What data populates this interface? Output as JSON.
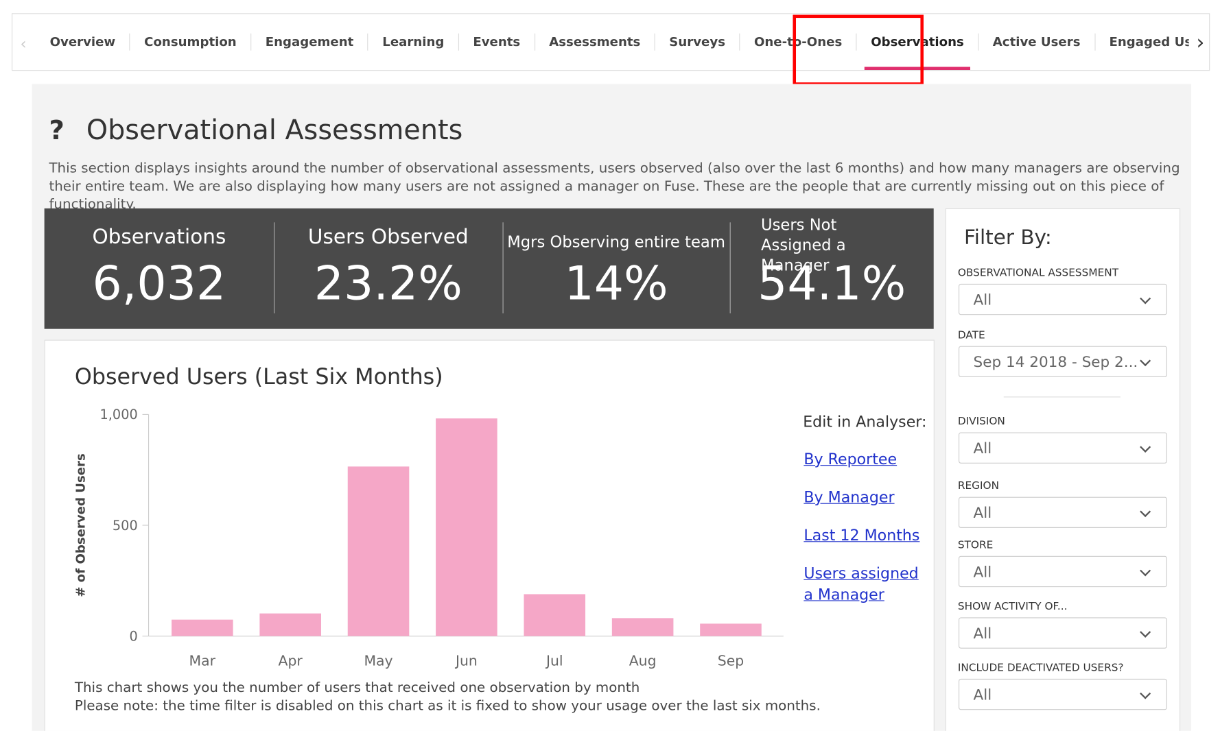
{
  "tabs": [
    "Overview",
    "Consumption",
    "Engagement",
    "Learning",
    "Events",
    "Assessments",
    "Surveys",
    "One-to-Ones",
    "Observations",
    "Active Users",
    "Engaged Users Overview"
  ],
  "section": {
    "title": "Observational Assessments",
    "description": "This section displays insights around the number of observational assessments, users observed (also over the last 6 months) and how many managers are observing their entire team. We are also displaying how many users are not assigned a manager on Fuse. These are the people that are currently missing out on this piece of functionality."
  },
  "stats": [
    {
      "label": "Observations",
      "value": "6,032"
    },
    {
      "label": "Users Observed",
      "value": "23.2%"
    },
    {
      "label": "Mgrs Observing entire team",
      "value": "14%"
    },
    {
      "label": "Users Not Assigned a Manager",
      "value": "54.1%"
    }
  ],
  "chart_data": {
    "type": "bar",
    "title": "Observed Users (Last Six Months)",
    "y_label": "# of Observed Users",
    "categories": [
      "Mar",
      "Apr",
      "May",
      "Jun",
      "Jul",
      "Aug",
      "Sep"
    ],
    "values": [
      74,
      102,
      765,
      982,
      189,
      81,
      56
    ],
    "color": "#f5a7c7",
    "ylim": [
      0,
      1000
    ],
    "yticks": [
      0,
      500,
      {
        "value": 1000,
        "label": "1,000"
      }
    ],
    "grid": false,
    "notes": [
      "This chart shows you the number of users that received one observation by month",
      "Please note: the time filter is disabled on this chart as it is fixed to show your usage over the last six months."
    ]
  },
  "analyser": {
    "heading": "Edit in Analyser:",
    "links": [
      "By Reportee",
      "By Manager",
      "Last 12 Months",
      "Users assigned a Manager"
    ]
  },
  "filters": {
    "title": "Filter By:",
    "items": [
      {
        "label": "OBSERVATIONAL ASSESSMENT",
        "value": "All"
      },
      {
        "label": "DATE",
        "value": "Sep 14 2018 - Sep 2..."
      },
      {
        "label": "DIVISION",
        "value": "All"
      },
      {
        "label": "REGION",
        "value": "All"
      },
      {
        "label": "STORE",
        "value": "All"
      },
      {
        "label": "SHOW ACTIVITY OF...",
        "value": "All"
      },
      {
        "label": "INCLUDE DEACTIVATED USERS?",
        "value": "All"
      }
    ]
  }
}
